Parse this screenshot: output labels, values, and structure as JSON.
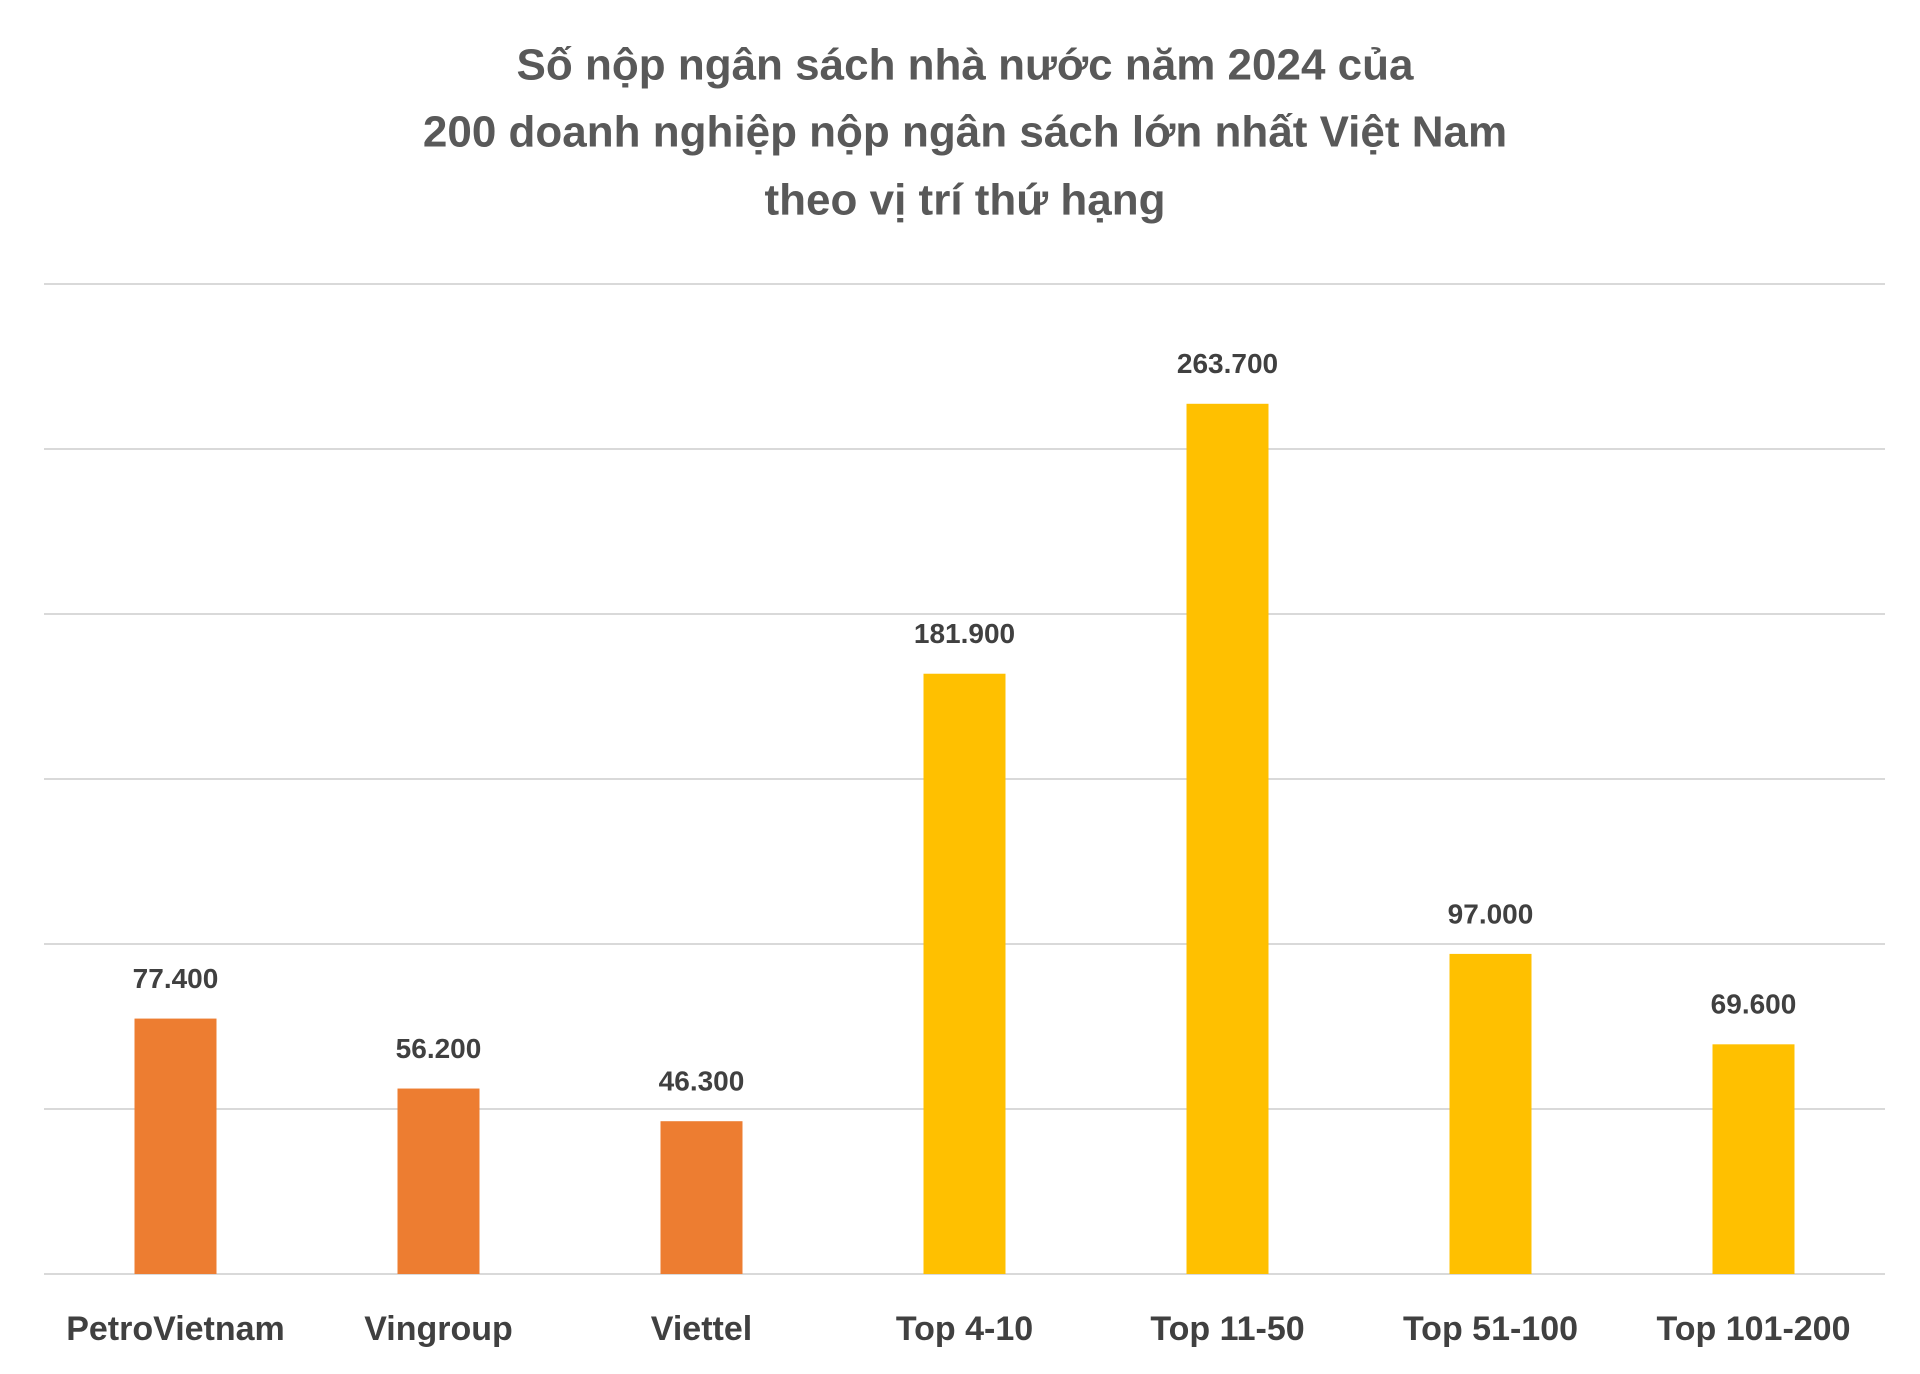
{
  "chart_data": {
    "type": "bar",
    "title": [
      "Số nộp ngân sách nhà nước năm 2024 của",
      "200 doanh nghiệp nộp ngân sách lớn nhất Việt Nam",
      "theo vị trí thứ hạng"
    ],
    "categories": [
      "PetroVietnam",
      "Vingroup",
      "Viettel",
      "Top 4-10",
      "Top 11-50",
      "Top 51-100",
      "Top 101-200"
    ],
    "values": [
      77400,
      56200,
      46300,
      181900,
      263700,
      97000,
      69600
    ],
    "value_labels": [
      "77.400",
      "56.200",
      "46.300",
      "181.900",
      "263.700",
      "97.000",
      "69.600"
    ],
    "colors": [
      "#ED7D31",
      "#ED7D31",
      "#ED7D31",
      "#FFC000",
      "#FFC000",
      "#FFC000",
      "#FFC000"
    ],
    "ylim": [
      0,
      300000
    ],
    "yticks": [
      0,
      50000,
      100000,
      150000,
      200000,
      250000,
      300000
    ],
    "grid": true
  }
}
